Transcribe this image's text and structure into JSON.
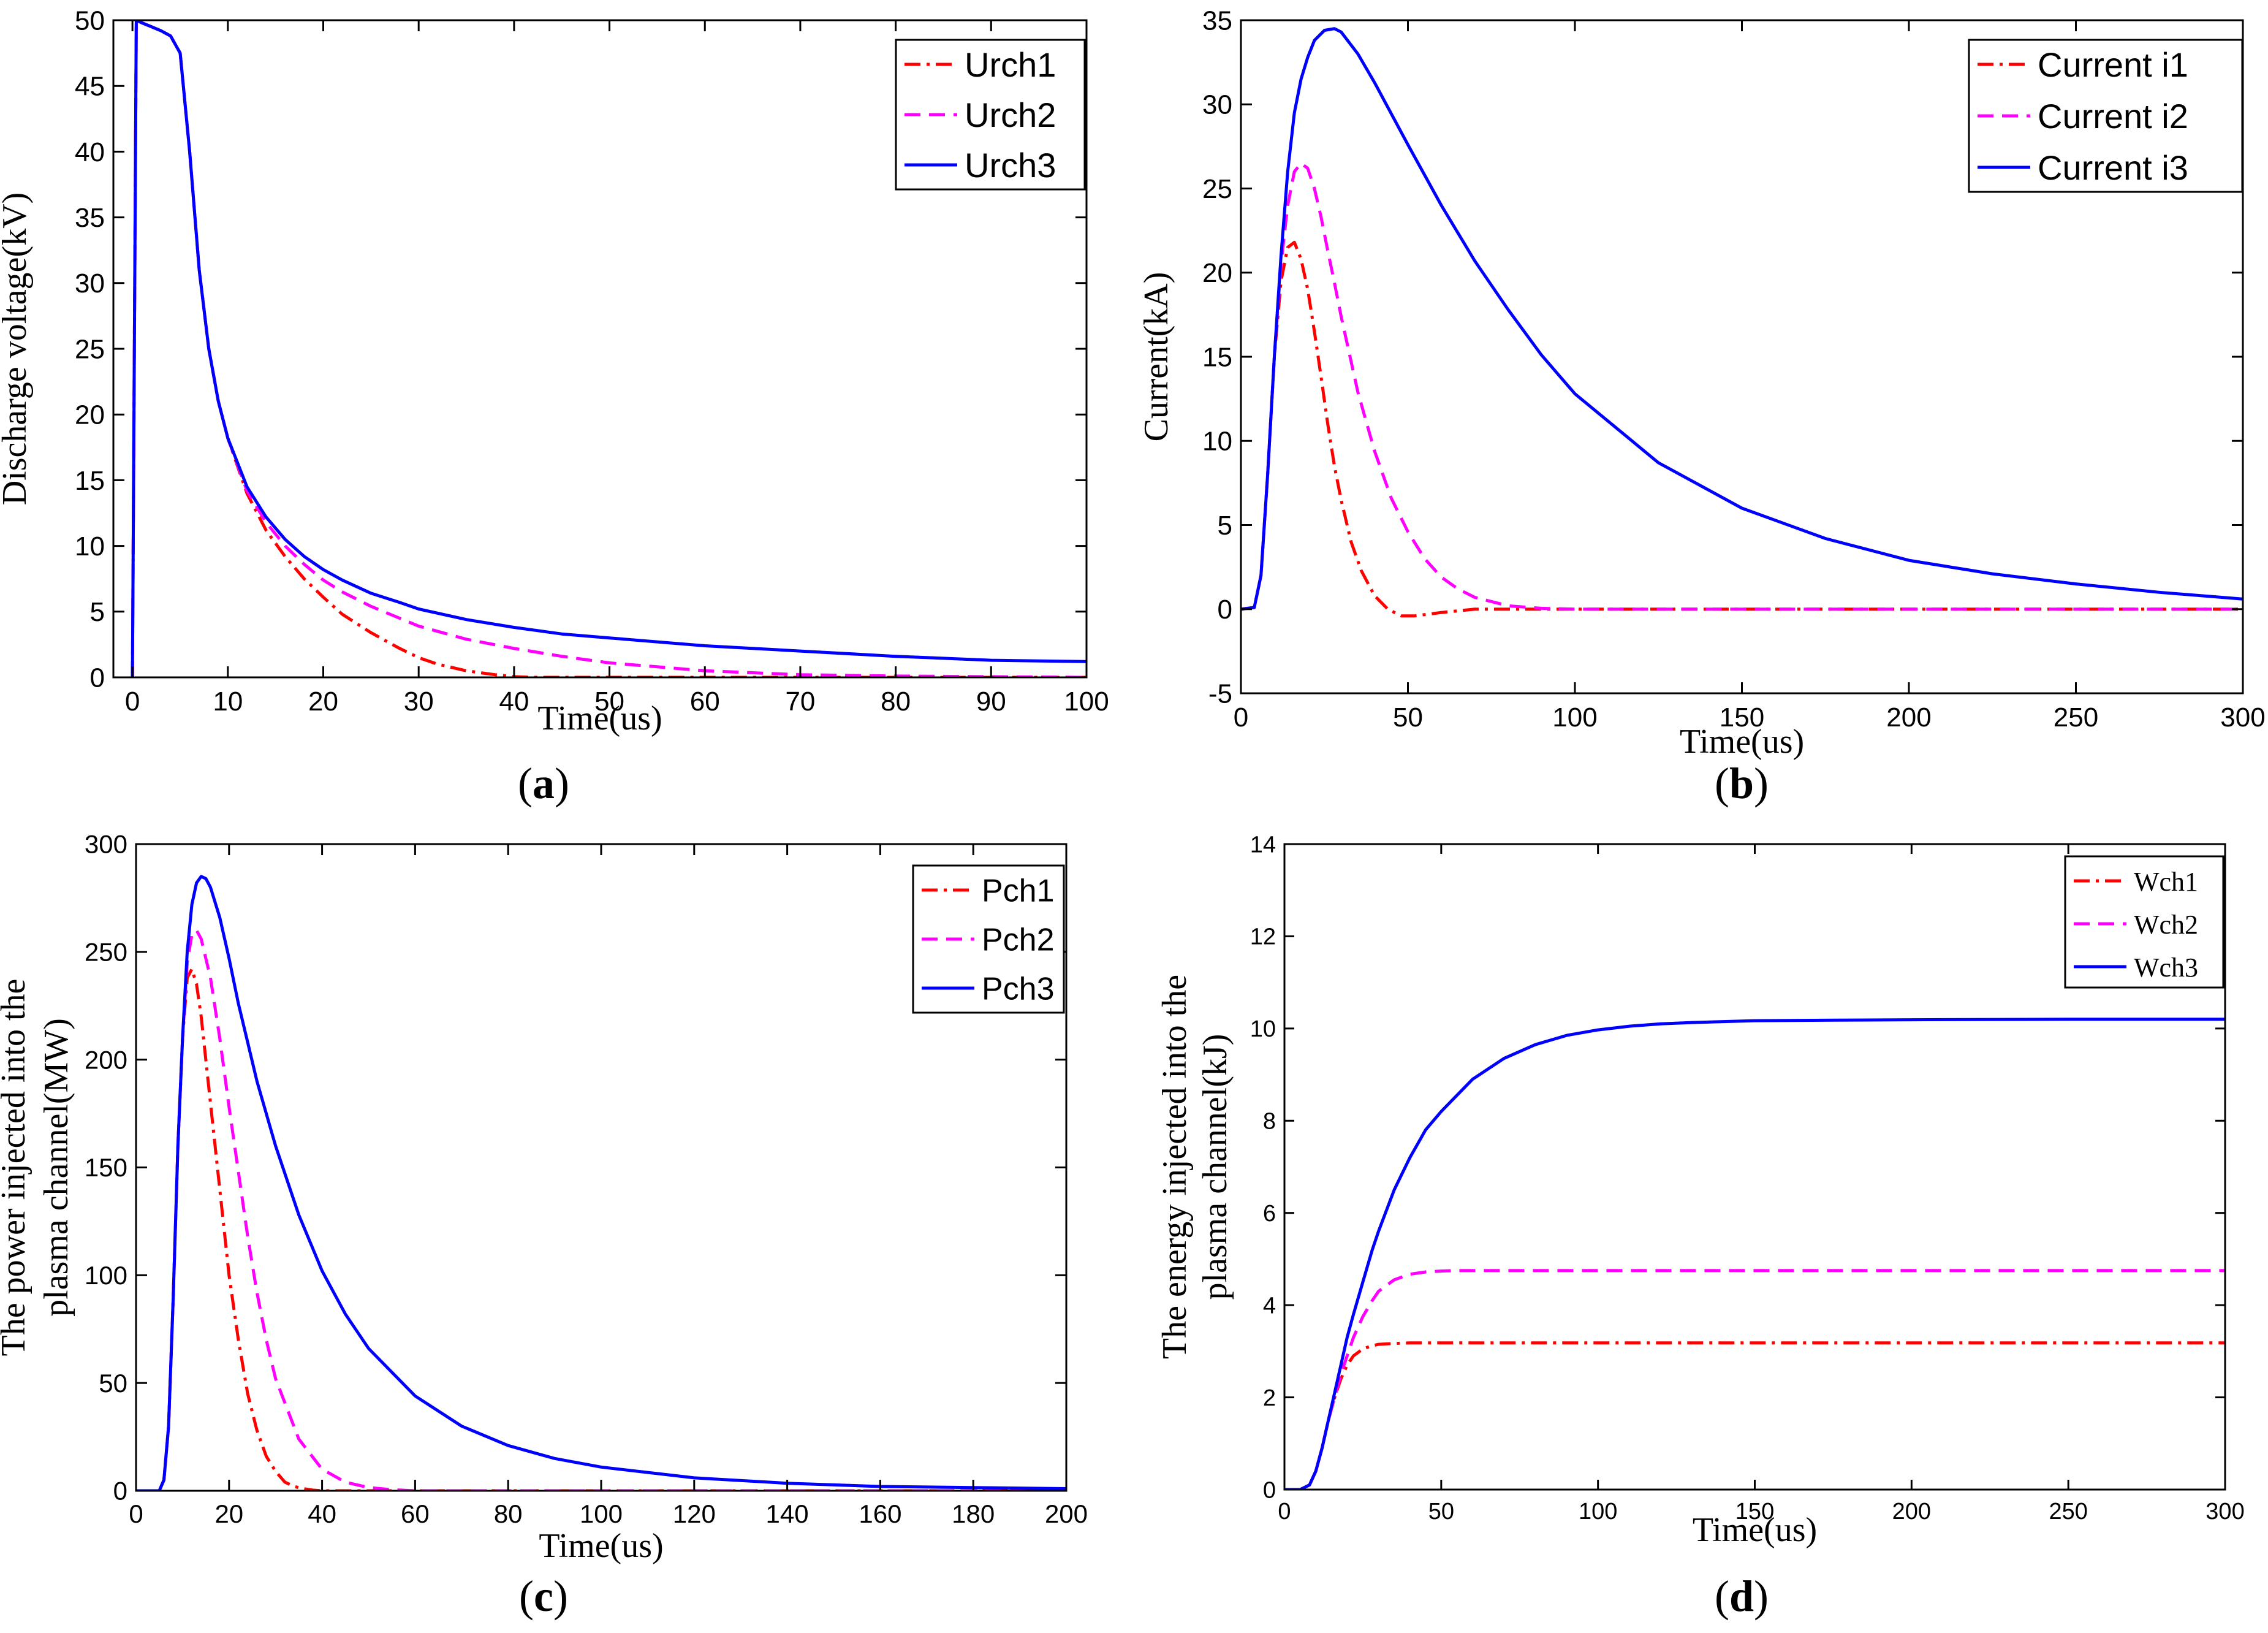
{
  "colors": {
    "s1": "#ff0000",
    "s2": "#ff00ff",
    "s3": "#0000ff",
    "axis": "#000000",
    "bg": "#ffffff"
  },
  "chart_data": [
    {
      "id": "a",
      "type": "line",
      "caption": "(a)",
      "caption_letter": "a",
      "title": "",
      "xlabel": "Time(us)",
      "ylabel": [
        "Discharge voltage(kV)"
      ],
      "xlim": [
        -2,
        100
      ],
      "ylim": [
        0,
        50
      ],
      "xticks": [
        0,
        10,
        20,
        30,
        40,
        50,
        60,
        70,
        80,
        90,
        100
      ],
      "yticks": [
        0,
        5,
        10,
        15,
        20,
        25,
        30,
        35,
        40,
        45,
        50
      ],
      "legend_position": "top-right",
      "legend_font": "sans",
      "series": [
        {
          "name": "Urch1",
          "style": "dashdot",
          "x": [
            0,
            0.4,
            1,
            2,
            3,
            4,
            5,
            6,
            7,
            8,
            9,
            10,
            12,
            14,
            16,
            18,
            20,
            22,
            25,
            28,
            30,
            32,
            35,
            38,
            40,
            42,
            44,
            46,
            50,
            60,
            80,
            100
          ],
          "y": [
            0,
            50,
            49.8,
            49.5,
            49.2,
            48.8,
            47.5,
            40,
            31,
            25,
            21,
            18.2,
            14,
            11.2,
            9.2,
            7.5,
            6.1,
            4.8,
            3.4,
            2.2,
            1.5,
            1,
            0.5,
            0.2,
            0.05,
            0,
            0,
            0,
            0,
            0,
            0,
            0
          ]
        },
        {
          "name": "Urch2",
          "style": "dashed",
          "x": [
            0,
            0.4,
            1,
            2,
            3,
            4,
            5,
            6,
            7,
            8,
            9,
            10,
            12,
            14,
            16,
            18,
            20,
            22,
            25,
            28,
            30,
            35,
            40,
            45,
            50,
            55,
            60,
            70,
            80,
            90,
            100
          ],
          "y": [
            0,
            50,
            49.8,
            49.5,
            49.2,
            48.8,
            47.5,
            40,
            31,
            25,
            21,
            18.2,
            14.2,
            11.8,
            10,
            8.6,
            7.4,
            6.5,
            5.4,
            4.5,
            3.9,
            2.9,
            2.2,
            1.6,
            1.1,
            0.8,
            0.5,
            0.2,
            0.1,
            0.05,
            0
          ]
        },
        {
          "name": "Urch3",
          "style": "solid",
          "x": [
            0,
            0.4,
            1,
            2,
            3,
            4,
            5,
            6,
            7,
            8,
            9,
            10,
            12,
            14,
            16,
            18,
            20,
            22,
            25,
            28,
            30,
            35,
            40,
            45,
            50,
            60,
            70,
            80,
            90,
            100
          ],
          "y": [
            0,
            50,
            49.8,
            49.5,
            49.2,
            48.8,
            47.5,
            40,
            31,
            25,
            21,
            18.2,
            14.5,
            12.2,
            10.5,
            9.2,
            8.2,
            7.4,
            6.4,
            5.7,
            5.2,
            4.4,
            3.8,
            3.3,
            3,
            2.4,
            2,
            1.6,
            1.3,
            1.2
          ]
        }
      ]
    },
    {
      "id": "b",
      "type": "line",
      "caption": "(b)",
      "caption_letter": "b",
      "title": "",
      "xlabel": "Time(us)",
      "ylabel": [
        "Current(kA)"
      ],
      "xlim": [
        0,
        300
      ],
      "ylim": [
        -5,
        35
      ],
      "xticks": [
        0,
        50,
        100,
        150,
        200,
        250,
        300
      ],
      "yticks": [
        -5,
        0,
        5,
        10,
        15,
        20,
        25,
        30,
        35
      ],
      "legend_position": "top-right",
      "legend_font": "sans",
      "series": [
        {
          "name": "Current i1",
          "style": "dashdot",
          "x": [
            0,
            4,
            6,
            8,
            10,
            12,
            14,
            16,
            18,
            20,
            22,
            24,
            26,
            28,
            30,
            33,
            36,
            40,
            44,
            48,
            52,
            56,
            60,
            70,
            80,
            300
          ],
          "y": [
            0,
            0.1,
            2,
            8,
            15,
            19.5,
            21.5,
            21.8,
            20.8,
            19,
            16.5,
            13.8,
            11,
            8.5,
            6.5,
            4,
            2.3,
            0.8,
            0,
            -0.4,
            -0.4,
            -0.3,
            -0.2,
            0,
            0,
            0
          ]
        },
        {
          "name": "Current i2",
          "style": "dashed",
          "x": [
            0,
            4,
            6,
            8,
            10,
            12,
            14,
            16,
            18,
            20,
            22,
            24,
            26,
            28,
            30,
            35,
            40,
            45,
            50,
            55,
            60,
            65,
            70,
            80,
            90,
            100,
            300
          ],
          "y": [
            0,
            0.1,
            2,
            8,
            15,
            20.5,
            24,
            26,
            26.5,
            26.2,
            25,
            23.3,
            21.3,
            19.4,
            17.4,
            12.9,
            9.4,
            6.6,
            4.6,
            3,
            1.9,
            1.2,
            0.7,
            0.2,
            0.05,
            0,
            0
          ]
        },
        {
          "name": "Current i3",
          "style": "solid",
          "x": [
            0,
            4,
            6,
            8,
            10,
            12,
            14,
            16,
            18,
            20,
            22,
            25,
            28,
            30,
            35,
            40,
            50,
            60,
            70,
            80,
            90,
            100,
            125,
            150,
            175,
            200,
            225,
            250,
            275,
            300
          ],
          "y": [
            0,
            0.1,
            2,
            8,
            15,
            21,
            26,
            29.5,
            31.5,
            32.8,
            33.8,
            34.4,
            34.5,
            34.3,
            33,
            31.3,
            27.6,
            24,
            20.7,
            17.8,
            15.1,
            12.8,
            8.7,
            6,
            4.2,
            2.9,
            2.1,
            1.5,
            1,
            0.6
          ]
        }
      ]
    },
    {
      "id": "c",
      "type": "line",
      "caption": "(c)",
      "caption_letter": "c",
      "title": "",
      "xlabel": "Time(us)",
      "ylabel": [
        "The power injected into the",
        "plasma channel(MW)"
      ],
      "xlim": [
        0,
        200
      ],
      "ylim": [
        0,
        300
      ],
      "xticks": [
        0,
        20,
        40,
        60,
        80,
        100,
        120,
        140,
        160,
        180,
        200
      ],
      "yticks": [
        0,
        50,
        100,
        150,
        200,
        250,
        300
      ],
      "legend_position": "top-right",
      "legend_font": "sans",
      "series": [
        {
          "name": "Pch1",
          "style": "dashdot",
          "x": [
            0,
            5,
            6,
            7,
            8,
            9,
            10,
            11,
            12,
            13,
            14,
            16,
            18,
            20,
            22,
            24,
            26,
            28,
            30,
            32,
            34,
            36,
            38,
            40,
            200
          ],
          "y": [
            0,
            0,
            5,
            30,
            90,
            160,
            210,
            238,
            242,
            235,
            220,
            180,
            140,
            100,
            70,
            45,
            28,
            16,
            9,
            4,
            2,
            1,
            0.3,
            0,
            0
          ]
        },
        {
          "name": "Pch2",
          "style": "dashed",
          "x": [
            0,
            5,
            6,
            7,
            8,
            9,
            10,
            11,
            12,
            13,
            14,
            16,
            18,
            20,
            22,
            24,
            26,
            28,
            30,
            35,
            40,
            45,
            50,
            55,
            60,
            200
          ],
          "y": [
            0,
            0,
            5,
            30,
            90,
            160,
            210,
            245,
            258,
            260,
            256,
            238,
            210,
            178,
            148,
            118,
            92,
            70,
            52,
            24,
            10,
            4,
            1.5,
            0.5,
            0,
            0
          ]
        },
        {
          "name": "Pch3",
          "style": "solid",
          "x": [
            0,
            5,
            6,
            7,
            8,
            9,
            10,
            11,
            12,
            13,
            14,
            15,
            16,
            18,
            20,
            22,
            24,
            26,
            28,
            30,
            35,
            40,
            45,
            50,
            60,
            70,
            80,
            90,
            100,
            120,
            140,
            160,
            180,
            200
          ],
          "y": [
            0,
            0,
            5,
            30,
            90,
            160,
            210,
            250,
            272,
            282,
            285,
            284,
            280,
            266,
            247,
            226,
            208,
            190,
            175,
            160,
            128,
            102,
            82,
            66,
            44,
            30,
            21,
            15,
            11,
            6,
            3.5,
            2,
            1.5,
            1
          ]
        }
      ]
    },
    {
      "id": "d",
      "type": "line",
      "caption": "(d)",
      "caption_letter": "d",
      "title": "",
      "xlabel": "Time(us)",
      "ylabel": [
        "The energy injected into the",
        "plasma channel(kJ)"
      ],
      "xlim": [
        0,
        300
      ],
      "ylim": [
        0,
        14
      ],
      "xticks": [
        0,
        50,
        100,
        150,
        200,
        250,
        300
      ],
      "yticks": [
        0,
        2,
        4,
        6,
        8,
        10,
        12,
        14
      ],
      "legend_position": "top-right",
      "legend_font": "serif",
      "series": [
        {
          "name": "Wch1",
          "style": "dashdot",
          "x": [
            0,
            5,
            8,
            10,
            12,
            14,
            16,
            18,
            20,
            22,
            25,
            28,
            30,
            35,
            40,
            300
          ],
          "y": [
            0,
            0,
            0.1,
            0.4,
            0.9,
            1.5,
            2,
            2.4,
            2.7,
            2.9,
            3.05,
            3.12,
            3.15,
            3.17,
            3.18,
            3.18
          ]
        },
        {
          "name": "Wch2",
          "style": "dashed",
          "x": [
            0,
            5,
            8,
            10,
            12,
            14,
            16,
            18,
            20,
            22,
            25,
            28,
            30,
            35,
            40,
            45,
            50,
            55,
            60,
            300
          ],
          "y": [
            0,
            0,
            0.1,
            0.4,
            0.9,
            1.5,
            2,
            2.5,
            2.9,
            3.3,
            3.75,
            4.1,
            4.3,
            4.55,
            4.67,
            4.72,
            4.74,
            4.75,
            4.75,
            4.75
          ]
        },
        {
          "name": "Wch3",
          "style": "solid",
          "x": [
            0,
            5,
            8,
            10,
            12,
            14,
            16,
            18,
            20,
            22,
            25,
            28,
            30,
            35,
            40,
            45,
            50,
            60,
            70,
            80,
            90,
            100,
            110,
            120,
            130,
            140,
            150,
            175,
            200,
            250,
            300
          ],
          "y": [
            0,
            0,
            0.1,
            0.4,
            0.9,
            1.5,
            2.1,
            2.7,
            3.3,
            3.8,
            4.5,
            5.2,
            5.6,
            6.5,
            7.2,
            7.8,
            8.2,
            8.9,
            9.35,
            9.65,
            9.85,
            9.97,
            10.05,
            10.1,
            10.13,
            10.15,
            10.17,
            10.18,
            10.19,
            10.2,
            10.2
          ]
        }
      ]
    }
  ]
}
